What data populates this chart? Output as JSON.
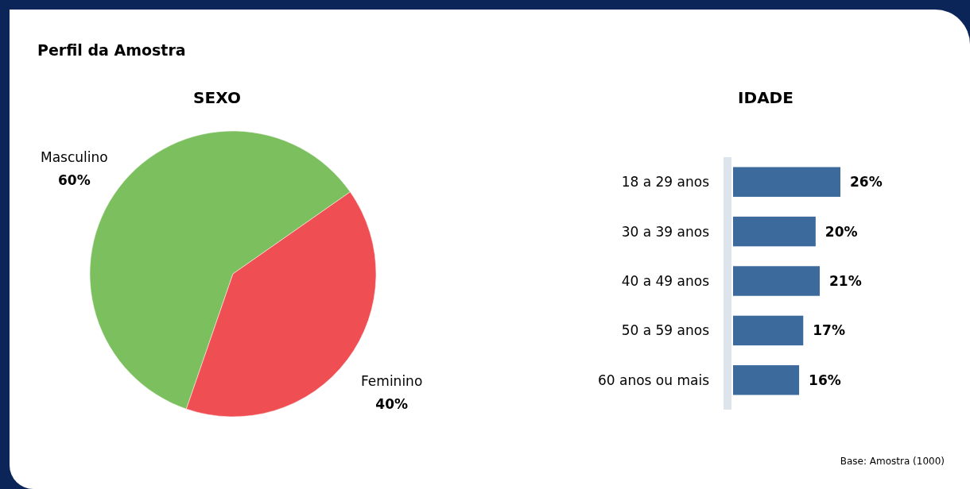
{
  "chart_data": [
    {
      "type": "pie",
      "title": "SEXO",
      "annotations": [
        "Perfil da Amostra"
      ],
      "categories": [
        "Masculino",
        "Feminino"
      ],
      "values": [
        60,
        40
      ],
      "colors": [
        "#7cbf5f",
        "#ef4e53"
      ],
      "value_labels": [
        "60%",
        "40%"
      ]
    },
    {
      "type": "bar",
      "orientation": "horizontal",
      "title": "IDADE",
      "annotations": [
        "Base: Amostra (1000)"
      ],
      "categories": [
        "18 a 29 anos",
        "30 a 39 anos",
        "40 a 49 anos",
        "50 a 59 anos",
        "60 anos ou mais"
      ],
      "values": [
        26,
        20,
        21,
        17,
        16
      ],
      "color": "#3d6a9c",
      "value_labels": [
        "26%",
        "20%",
        "21%",
        "17%",
        "16%"
      ]
    }
  ]
}
